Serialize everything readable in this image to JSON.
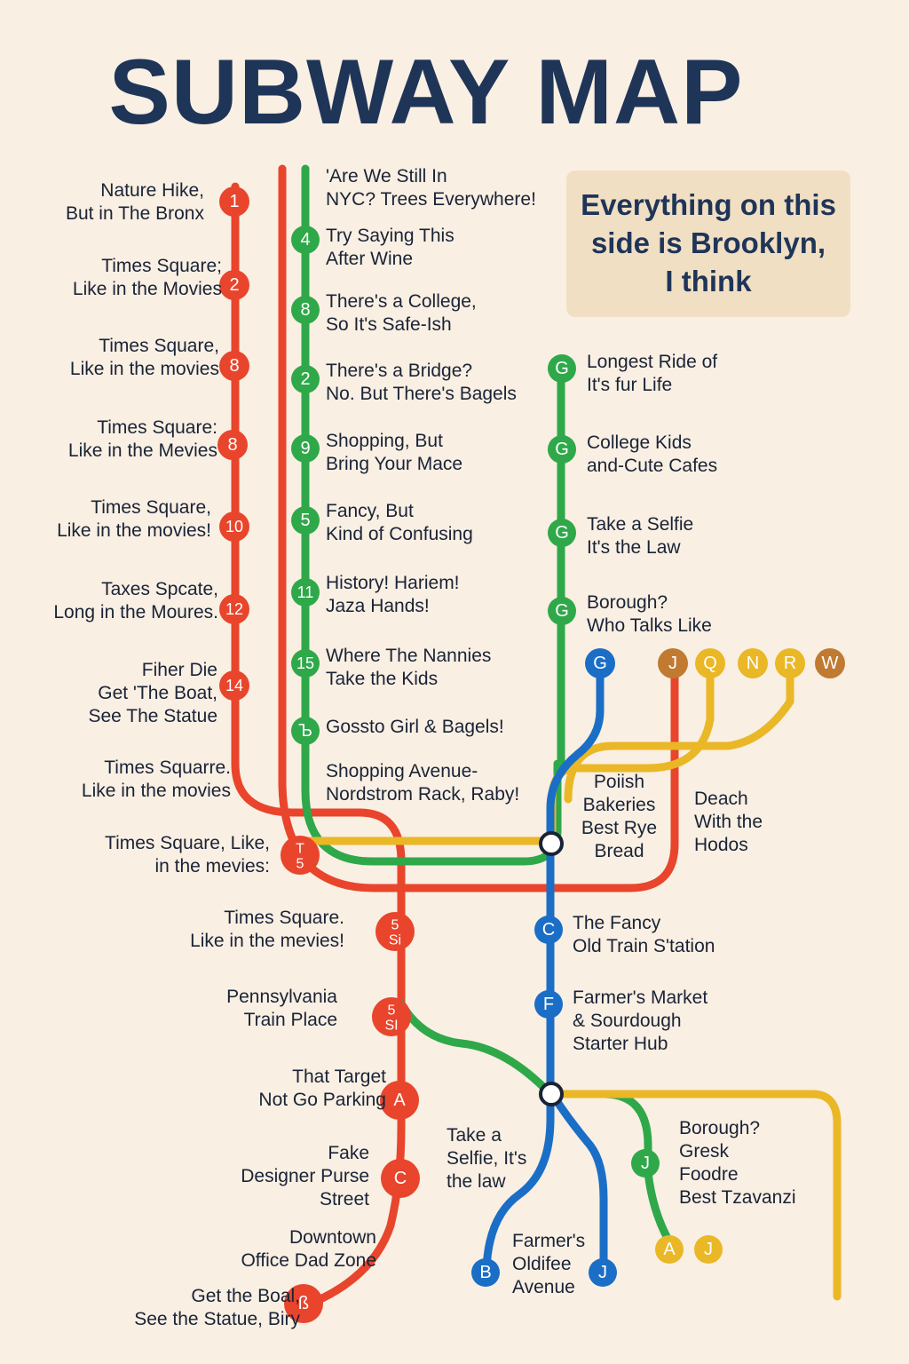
{
  "title": "SUBWAY MAP",
  "callout": "Everything on this\nside is Brooklyn,\nI think",
  "colors": {
    "background": "#f9efe3",
    "title": "#1f3558",
    "red": "#e8452c",
    "green": "#2fa84a",
    "blue": "#1a6ec6",
    "yellow": "#eab726",
    "brown": "#c07a31",
    "callout_bg": "#f1dfc4"
  },
  "stations_red": [
    {
      "badge": "1",
      "label": "Nature Hike,\nBut in The Bronx"
    },
    {
      "badge": "2",
      "label": "Times Square;\nLike in the Movies"
    },
    {
      "badge": "8",
      "label": "Times Square,\nLike in the movies"
    },
    {
      "badge": "8",
      "label": "Times Square:\nLike in the Mevies"
    },
    {
      "badge": "10",
      "label": "Times Square,\nLike in the movies!"
    },
    {
      "badge": "12",
      "label": "Taxes Spcate,\nLong in the Moures."
    },
    {
      "badge": "14",
      "label": "Fiher Die\nGet 'The Boat,\nSee The Statue"
    },
    {
      "badge": "",
      "label": "Times Squarre.\nLike in the movies"
    },
    {
      "badge": "T\n5",
      "label": "Times Square, Like,\nin the mevies:"
    },
    {
      "badge": "5\nSi",
      "label": "Times Square.\nLike in the mevies!"
    },
    {
      "badge": "5\nSI",
      "label": "Pennsylvania\nTrain Place"
    },
    {
      "badge": "A",
      "label": "That Target\nNot Go Parking"
    },
    {
      "badge": "C",
      "label": "Fake\nDesigner Purse\nStreet"
    },
    {
      "badge": "",
      "label": "Downtown\nOffice Dad Zone"
    },
    {
      "badge": "ß",
      "label": "Get the Boal,\nSee the Statue, Biry"
    }
  ],
  "stations_green": [
    {
      "badge": "",
      "label": "'Are We Still In\nNYC? Trees Everywhere!"
    },
    {
      "badge": "4",
      "label": "Try Saying This\nAfter Wine"
    },
    {
      "badge": "8",
      "label": "There's a College,\nSo It's Safe-Ish"
    },
    {
      "badge": "2",
      "label": "There's a Bridge?\nNo. But There's Bagels"
    },
    {
      "badge": "9",
      "label": "Shopping, But\nBring Your Mace"
    },
    {
      "badge": "5",
      "label": "Fancy, But\nKind of Confusing"
    },
    {
      "badge": "11",
      "label": "History! Hariem!\nJaza Hands!"
    },
    {
      "badge": "15",
      "label": "Where The Nannies\nTake the Kids"
    },
    {
      "badge": "Ъ",
      "label": "Gossto Girl & Bagels!"
    },
    {
      "badge": "",
      "label": "Shopping Avenue-\nNordstrom Rack, Raby!"
    }
  ],
  "stations_g": [
    {
      "badge": "G",
      "label": "Longest Ride of\nIt's fur Life"
    },
    {
      "badge": "G",
      "label": "College Kids\nand-Cute Cafes"
    },
    {
      "badge": "G",
      "label": "Take a Selfie\nIt's the Law"
    },
    {
      "badge": "G",
      "label": "Borough?\nWho Talks Like"
    }
  ],
  "terminal_badges": {
    "top_blue": "G",
    "top_row": [
      "J",
      "Q",
      "N",
      "R",
      "W"
    ],
    "bottom": [
      "B",
      "J",
      "A",
      "J"
    ]
  },
  "stations_blue": [
    {
      "badge": "C",
      "label": "The Fancy\nOld Train S'tation"
    },
    {
      "badge": "F",
      "label": "Farmer's Market\n& Sourdough\nStarter Hub"
    }
  ],
  "station_j": {
    "badge": "J",
    "label": "Borough?\nGresk\nFoodre\nBest Tzavanzi"
  },
  "free_labels": {
    "polish": "Poiish\nBakeries\nBest Rye\nBread",
    "beach": "Deach\nWith the\nHodos",
    "selfie": "Take a\nSelfie, It's\nthe law",
    "farmers": "Farmer's\nOldifee\nAvenue"
  }
}
